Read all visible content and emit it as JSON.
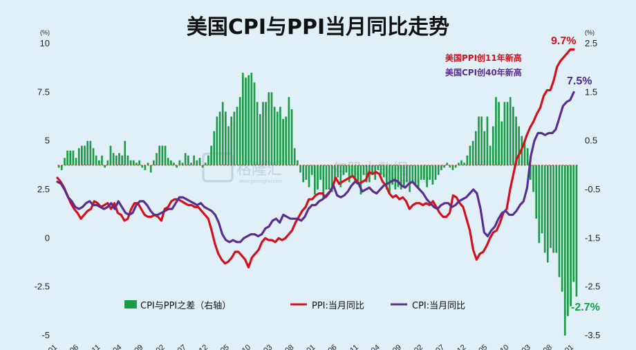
{
  "chart_data": {
    "type": "bar+line",
    "title": "美国CPI与PPI当月同比走势",
    "left_axis": {
      "unit": "(%)",
      "ylim": [
        -5,
        10
      ],
      "ticks": [
        10,
        7.5,
        5,
        2.5,
        0,
        -2.5,
        -5
      ],
      "tick_labels": [
        "10",
        "7.5",
        "5",
        "2.5",
        "0",
        "-2.5",
        "-5"
      ]
    },
    "right_axis": {
      "unit": "(%)",
      "ylim": [
        -3.5,
        2.5
      ],
      "ticks": [
        2.5,
        1.5,
        0.5,
        -0.5,
        -1.5,
        -2.5,
        -3.5
      ],
      "tick_labels": [
        "2.5",
        "1.5",
        "0.5",
        "-0.5",
        "-1.5",
        "-2.5",
        "-3.5"
      ]
    },
    "x_tick_labels": [
      "01",
      "06",
      "11",
      "04",
      "09",
      "02",
      "07",
      "12",
      "05",
      "10",
      "03",
      "08",
      "01",
      "06",
      "11",
      "04",
      "09",
      "02",
      "07",
      "12",
      "05",
      "10",
      "03",
      "08",
      "01"
    ],
    "series": [
      {
        "name": "CPI与PPI之差（右轴）",
        "axis": "right",
        "type": "bar",
        "color": "#1a9b46",
        "values": [
          -0.05,
          -0.1,
          0.15,
          0.3,
          0.3,
          0.3,
          0.15,
          0.35,
          0.4,
          0.4,
          0.5,
          0.5,
          0.35,
          0.2,
          0.1,
          0.2,
          -0.05,
          0.1,
          0.4,
          0.25,
          0.2,
          0.25,
          0.2,
          0.5,
          0.2,
          0.1,
          0.1,
          0.05,
          0.1,
          -0.05,
          -0.1,
          0.05,
          -0.15,
          0.1,
          0.25,
          0.4,
          0.4,
          0.4,
          0.15,
          0.1,
          0.05,
          -0.05,
          0.1,
          0.05,
          0.25,
          0.2,
          0.05,
          0.2,
          0.1,
          0.15,
          -0.05,
          0.05,
          0.2,
          0.4,
          0.7,
          1,
          1.1,
          1.3,
          1.1,
          0.8,
          1,
          1.1,
          1.2,
          1.4,
          1.9,
          1.8,
          1.85,
          1.9,
          1.7,
          1.3,
          1.05,
          1.3,
          1.3,
          1.5,
          1.5,
          1.2,
          1.1,
          1.2,
          0.95,
          1,
          1.4,
          1.15,
          0.35,
          0.1,
          -0.15,
          -0.35,
          -0.3,
          -0.45,
          -0.2,
          -0.6,
          -0.5,
          -0.3,
          -0.7,
          -0.5,
          -0.5,
          -0.55,
          -0.3,
          -0.25,
          -0.45,
          -0.2,
          -0.15,
          -0.35,
          -0.2,
          -0.35,
          -0.4,
          -0.6,
          -0.2,
          -0.35,
          -0.35,
          -0.2,
          -0.3,
          -0.1,
          -0.2,
          -0.25,
          -0.5,
          -0.6,
          -0.4,
          -0.5,
          -0.45,
          -0.5,
          -0.45,
          -0.35,
          -0.55,
          -0.35,
          -0.4,
          -0.45,
          -0.3,
          -0.3,
          -0.45,
          -0.3,
          -0.4,
          -0.3,
          -0.2,
          -0.1,
          -0.05,
          0.05,
          -0.05,
          -0.1,
          -0.05,
          0.05,
          0.1,
          0.05,
          0.2,
          0.4,
          0.5,
          0.7,
          1,
          1,
          0.7,
          1,
          0.4,
          0.8,
          1.4,
          1.3,
          0.9,
          1.3,
          1.3,
          1.4,
          1.2,
          1,
          0.8,
          0.6,
          0.5,
          0.35,
          -0.3,
          -0.55,
          -1.1,
          -1.6,
          -1.4,
          -1.8,
          -2,
          -1.7,
          -1.8,
          -1.8,
          -2.3,
          -2.6,
          -3.5,
          -3.1,
          -2.9,
          -2.4,
          -2.7
        ],
        "end_label": "-2.7%"
      },
      {
        "name": "PPI:当月同比",
        "axis": "left",
        "type": "line",
        "color": "#d4101c",
        "values": [
          3.1,
          2.9,
          2.6,
          2.2,
          1.8,
          1.5,
          1.3,
          1,
          1.2,
          1.4,
          1.5,
          1.9,
          1.8,
          1.6,
          1.7,
          1.8,
          1.5,
          1.8,
          1.3,
          1.2,
          0.9,
          1,
          1.5,
          1.8,
          1.8,
          1.5,
          1.2,
          1.1,
          1.1,
          1.2,
          1.1,
          0.9,
          1.5,
          1.6,
          1.9,
          2,
          2,
          1.9,
          1.8,
          1.7,
          1.7,
          1.6,
          1.6,
          1.4,
          1.2,
          1,
          0.4,
          -0.3,
          -0.8,
          -1.1,
          -1.3,
          -1.2,
          -1,
          -0.7,
          -0.7,
          -0.9,
          -1.1,
          -1.5,
          -1,
          -0.8,
          -0.6,
          -0.2,
          0,
          -0.1,
          -0.1,
          -0.2,
          0,
          -0.1,
          0,
          0.2,
          0.4,
          0.8,
          1.1,
          1.4,
          1.6,
          2,
          2,
          2.2,
          2.3,
          2.3,
          2.1,
          2.3,
          2.6,
          3.1,
          2.8,
          2.9,
          3,
          3.1,
          3.2,
          3,
          2.8,
          2.9,
          3,
          3.4,
          3.3,
          3.4,
          3.3,
          2.9,
          2.7,
          2.3,
          2.1,
          2.2,
          2,
          2.1,
          1.9,
          1.5,
          1.7,
          1.8,
          1.8,
          1.7,
          1.8,
          1.7,
          1.9,
          1.6,
          1.3,
          1.1,
          1.1,
          1.3,
          2.2,
          2.1,
          1.8,
          1.6,
          1,
          0.4,
          -0.6,
          -1.1,
          -0.8,
          -0.7,
          -0.4,
          0,
          0.3,
          0.4,
          0.8,
          1.3,
          1.5,
          2.5,
          3.3,
          4.1,
          4.4,
          4.8,
          5.3,
          5.7,
          6,
          6.4,
          6.7,
          7.3,
          7.6,
          7.6,
          8.1,
          8.8,
          9.1,
          9.3,
          9.5,
          9.7,
          9.7
        ]
      },
      {
        "name": "CPI:当月同比",
        "axis": "left",
        "type": "line",
        "color": "#5a2d91",
        "values": [
          2.9,
          2.8,
          2.5,
          2.1,
          1.9,
          1.6,
          1.5,
          1.6,
          1.8,
          1.9,
          1.7,
          1.7,
          1.6,
          1.5,
          1.6,
          1.8,
          1.5,
          1.9,
          1.6,
          1.3,
          1.2,
          1.3,
          1.7,
          1.9,
          1.9,
          1.7,
          1.4,
          1.2,
          1.2,
          1.3,
          1.4,
          1.5,
          1.5,
          1.8,
          2.1,
          2.1,
          2,
          1.9,
          1.8,
          1.7,
          1.8,
          1.6,
          1.5,
          1.4,
          1.2,
          0.8,
          0.2,
          -0.1,
          -0.2,
          -0.1,
          -0.2,
          -0.2,
          0,
          0.1,
          0.2,
          0.2,
          0.1,
          0.2,
          0.5,
          0.6,
          0.9,
          1,
          0.8,
          1.2,
          1.1,
          1,
          1,
          1,
          0.9,
          1.1,
          1.5,
          1.7,
          1.7,
          1.9,
          2,
          2.2,
          2.4,
          2.7,
          2.2,
          2.1,
          2.2,
          2.4,
          2.7,
          2.9,
          2.8,
          2.4,
          2.5,
          2.6,
          2.4,
          2.3,
          2.5,
          2.7,
          2.8,
          2.9,
          3,
          2.9,
          2.7,
          2.6,
          2.8,
          2.9,
          2.7,
          2.5,
          2.3,
          2,
          1.8,
          1.6,
          1.5,
          1.7,
          1.8,
          1.8,
          1.6,
          1.7,
          1.9,
          2,
          2.1,
          2.3,
          2.5,
          2.3,
          1.5,
          0.3,
          0.1,
          0.4,
          0.6,
          1,
          1.3,
          1.4,
          1.2,
          1.2,
          1.4,
          1.7,
          1.9,
          2.6,
          4.2,
          5,
          5.4,
          5.4,
          5.3,
          5.4,
          5.4,
          5.6,
          6.2,
          6.8,
          7,
          7.1,
          7.5
        ],
        "end_label": "7.5%"
      }
    ],
    "legend": [
      "CPI与PPI之差（右轴）",
      "PPI:当月同比",
      "CPI:当月同比"
    ],
    "legend_placement": "bottom",
    "annotations": [
      "美国PPI创11年新高",
      "美国CPI创40年新高"
    ],
    "ppi_end_label": "9.7%",
    "watermark": {
      "brand1": "格隆汇",
      "brand2": "勾股大数据",
      "url": "www.gelonghui.com"
    }
  },
  "colors": {
    "background": "#e1eff7",
    "ppi": "#d4101c",
    "cpi": "#5a2d91",
    "diff": "#1a9b46",
    "zero_line": "#c8413a"
  }
}
